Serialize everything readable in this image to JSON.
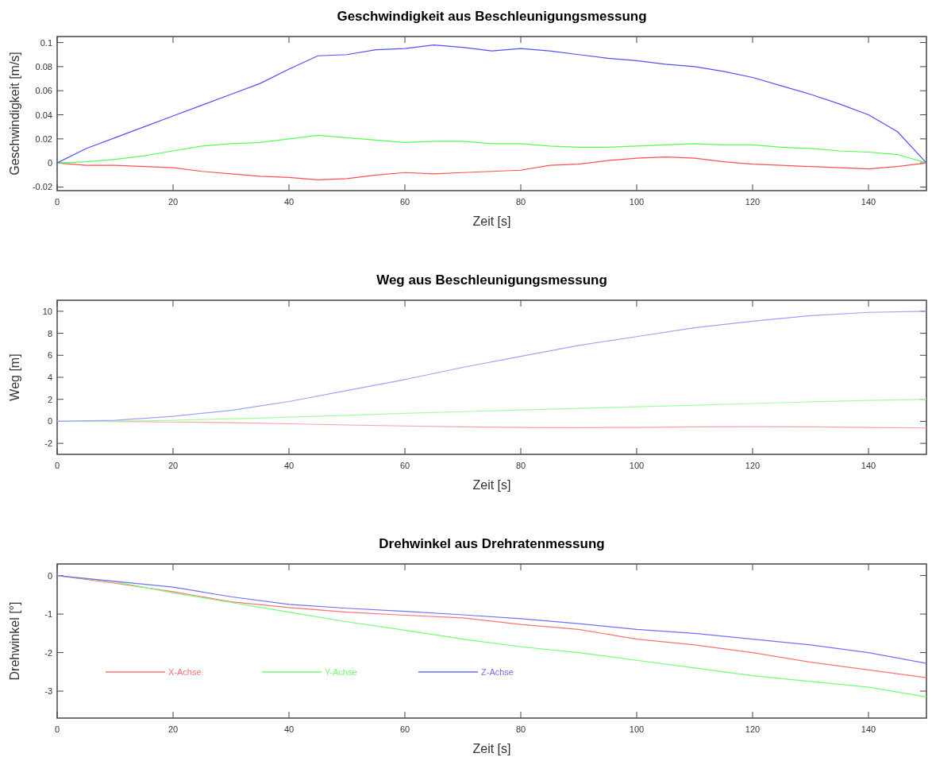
{
  "chart_data": [
    {
      "type": "line",
      "title": "Geschwindigkeit aus Beschleunigungsmessung",
      "xlabel": "Zeit [s]",
      "ylabel": "Geschwindigkeit [m/s]",
      "x": [
        0,
        5,
        10,
        15,
        20,
        25,
        30,
        35,
        40,
        45,
        50,
        55,
        60,
        65,
        70,
        75,
        80,
        85,
        90,
        95,
        100,
        105,
        110,
        115,
        120,
        125,
        130,
        135,
        140,
        145,
        150
      ],
      "series": [
        {
          "color": "#ff5050",
          "values": [
            0,
            -0.002,
            -0.002,
            -0.003,
            -0.004,
            -0.007,
            -0.009,
            -0.011,
            -0.012,
            -0.014,
            -0.013,
            -0.01,
            -0.008,
            -0.009,
            -0.008,
            -0.007,
            -0.006,
            -0.002,
            -0.001,
            0.002,
            0.004,
            0.005,
            0.004,
            0.001,
            -0.001,
            -0.002,
            -0.003,
            -0.004,
            -0.005,
            -0.003,
            0
          ]
        },
        {
          "color": "#50ff50",
          "values": [
            0,
            0.001,
            0.003,
            0.006,
            0.01,
            0.014,
            0.016,
            0.017,
            0.02,
            0.023,
            0.021,
            0.019,
            0.017,
            0.018,
            0.018,
            0.016,
            0.016,
            0.014,
            0.013,
            0.013,
            0.014,
            0.015,
            0.016,
            0.015,
            0.015,
            0.013,
            0.012,
            0.01,
            0.009,
            0.007,
            0
          ]
        },
        {
          "color": "#5050ff",
          "values": [
            0,
            0.012,
            0.021,
            0.03,
            0.039,
            0.048,
            0.057,
            0.066,
            0.078,
            0.089,
            0.09,
            0.094,
            0.095,
            0.098,
            0.096,
            0.093,
            0.095,
            0.093,
            0.09,
            0.087,
            0.085,
            0.082,
            0.08,
            0.076,
            0.071,
            0.064,
            0.057,
            0.049,
            0.04,
            0.026,
            0
          ]
        }
      ],
      "xlim": [
        0,
        150
      ],
      "xticks": [
        0,
        20,
        40,
        60,
        80,
        100,
        120,
        140
      ],
      "ylim": [
        -0.023,
        0.105
      ],
      "yticks": [
        -0.02,
        0,
        0.02,
        0.04,
        0.06,
        0.08,
        0.1
      ],
      "legend": false
    },
    {
      "type": "line",
      "title": "Weg aus Beschleunigungsmessung",
      "xlabel": "Zeit [s]",
      "ylabel": "Weg [m]",
      "x": [
        0,
        10,
        20,
        30,
        40,
        50,
        60,
        70,
        80,
        90,
        100,
        110,
        120,
        130,
        140,
        150
      ],
      "series": [
        {
          "color": "#ffa0a0",
          "values": [
            0,
            -0.02,
            -0.06,
            -0.12,
            -0.22,
            -0.33,
            -0.42,
            -0.5,
            -0.55,
            -0.57,
            -0.55,
            -0.5,
            -0.48,
            -0.5,
            -0.55,
            -0.6
          ]
        },
        {
          "color": "#a0ffa0",
          "values": [
            0,
            0.02,
            0.1,
            0.22,
            0.38,
            0.55,
            0.72,
            0.88,
            1.03,
            1.18,
            1.32,
            1.47,
            1.62,
            1.77,
            1.9,
            2.0
          ]
        },
        {
          "color": "#a0a0ff",
          "values": [
            0,
            0.1,
            0.45,
            1.0,
            1.8,
            2.8,
            3.8,
            4.9,
            5.9,
            6.9,
            7.7,
            8.5,
            9.1,
            9.6,
            9.9,
            10
          ]
        }
      ],
      "xlim": [
        0,
        150
      ],
      "xticks": [
        0,
        20,
        40,
        60,
        80,
        100,
        120,
        140
      ],
      "ylim": [
        -3,
        11
      ],
      "yticks": [
        -2,
        0,
        2,
        4,
        6,
        8,
        10
      ],
      "legend": false
    },
    {
      "type": "line",
      "title": "Drehwinkel aus Drehratenmessung",
      "xlabel": "Zeit [s]",
      "ylabel": "Drehwinkel [°]",
      "x": [
        0,
        10,
        20,
        30,
        40,
        50,
        60,
        70,
        80,
        90,
        100,
        110,
        120,
        130,
        140,
        150
      ],
      "series": [
        {
          "name": "X-Achse",
          "color": "#ff7070",
          "values": [
            0,
            -0.2,
            -0.42,
            -0.68,
            -0.83,
            -0.95,
            -1.03,
            -1.1,
            -1.27,
            -1.4,
            -1.65,
            -1.8,
            -2.0,
            -2.25,
            -2.45,
            -2.65
          ]
        },
        {
          "name": "Y-Achse",
          "color": "#70ff70",
          "values": [
            0,
            -0.16,
            -0.45,
            -0.7,
            -0.95,
            -1.2,
            -1.42,
            -1.65,
            -1.85,
            -2.0,
            -2.2,
            -2.4,
            -2.6,
            -2.75,
            -2.9,
            -3.15
          ]
        },
        {
          "name": "Z-Achse",
          "color": "#7070ff",
          "values": [
            0,
            -0.15,
            -0.3,
            -0.55,
            -0.75,
            -0.85,
            -0.93,
            -1.02,
            -1.12,
            -1.25,
            -1.4,
            -1.5,
            -1.65,
            -1.8,
            -2.0,
            -2.28
          ]
        }
      ],
      "xlim": [
        0,
        150
      ],
      "xticks": [
        0,
        20,
        40,
        60,
        80,
        100,
        120,
        140
      ],
      "ylim": [
        -3.7,
        0.3
      ],
      "yticks": [
        -3,
        -2,
        -1,
        0
      ],
      "legend": "bottom left"
    }
  ]
}
